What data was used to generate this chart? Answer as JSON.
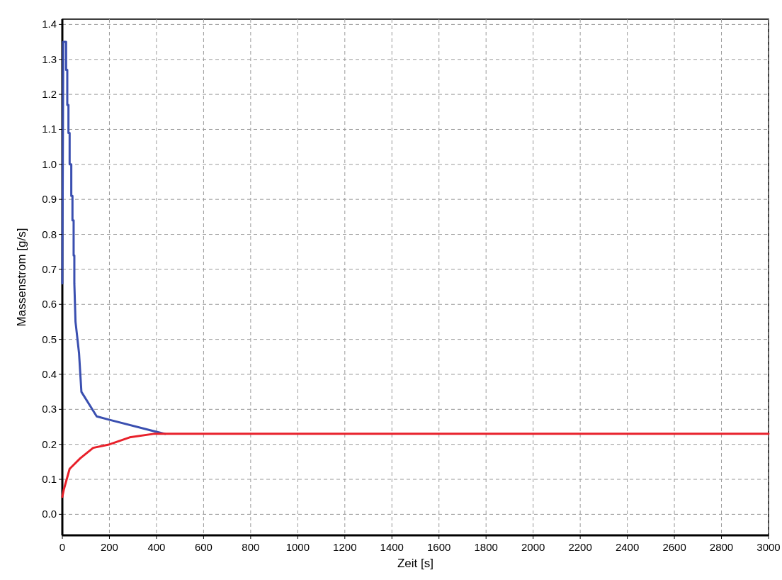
{
  "chart_data": {
    "type": "line",
    "xlabel": "Zeit [s]",
    "ylabel": "Massenstrom [g/s]",
    "xlim": [
      0,
      3000
    ],
    "xticks": [
      0,
      200,
      400,
      600,
      800,
      1000,
      1200,
      1400,
      1600,
      1800,
      2000,
      2200,
      2400,
      2600,
      2800,
      3000
    ],
    "ylim": [
      -0.06,
      1.415
    ],
    "yticks": [
      {
        "value": 0,
        "label": "0.0"
      },
      0.1,
      0.2,
      0.3,
      0.4,
      0.5,
      0.6,
      0.7,
      0.8,
      0.9,
      {
        "value": 1,
        "label": "1.0"
      },
      1.1,
      1.2,
      1.3,
      1.4
    ],
    "grid": true,
    "marker": "none",
    "line_style": "solid",
    "series": [
      {
        "color": "#3a4fb0",
        "x": [
          0,
          4,
          16,
          16,
          21,
          21,
          26,
          26,
          31,
          31,
          38,
          38,
          43,
          43,
          48,
          48,
          51,
          51,
          56,
          71,
          81,
          146,
          201,
          376,
          436
        ],
        "values": [
          0.66,
          1.35,
          1.35,
          1.27,
          1.27,
          1.17,
          1.17,
          1.09,
          1.09,
          1.0,
          1.0,
          0.91,
          0.91,
          0.84,
          0.84,
          0.74,
          0.74,
          0.66,
          0.55,
          0.46,
          0.35,
          0.28,
          0.27,
          0.24,
          0.23
        ]
      },
      {
        "color": "#e8202a",
        "x": [
          0,
          6,
          31,
          76,
          131,
          201,
          286,
          388,
          436,
          3000
        ],
        "values": [
          0.05,
          0.07,
          0.13,
          0.16,
          0.19,
          0.2,
          0.22,
          0.23,
          0.23,
          0.23
        ]
      }
    ]
  }
}
